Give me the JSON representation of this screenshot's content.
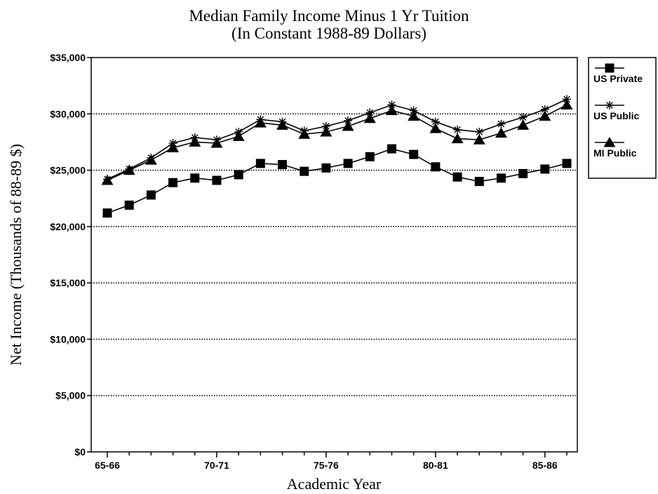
{
  "chart_data": {
    "type": "line",
    "title": "Median Family Income Minus 1 Yr Tuition",
    "subtitle": "(In Constant 1988-89 Dollars)",
    "xlabel": "Academic Year",
    "ylabel": "Net Income (Thousands of 88-89 $)",
    "ylim": [
      0,
      35000
    ],
    "y_ticks": [
      0,
      5000,
      10000,
      15000,
      20000,
      25000,
      30000,
      35000
    ],
    "y_tick_labels": [
      "$0",
      "$5,000",
      "$10,000",
      "$15,000",
      "$20,000",
      "$25,000",
      "$30,000",
      "$35,000"
    ],
    "x": [
      "65-66",
      "66-67",
      "67-68",
      "68-69",
      "69-70",
      "70-71",
      "71-72",
      "72-73",
      "73-74",
      "74-75",
      "75-76",
      "76-77",
      "77-78",
      "78-79",
      "79-80",
      "80-81",
      "81-82",
      "82-83",
      "83-84",
      "84-85",
      "85-86",
      "86-87"
    ],
    "x_tick_labels": [
      "65-66",
      "70-71",
      "75-76",
      "80-81",
      "85-86"
    ],
    "grid": "horizontal dotted",
    "legend_position": "right",
    "series": [
      {
        "name": "US Private",
        "marker": "square",
        "values": [
          21200,
          21900,
          22800,
          23900,
          24300,
          24100,
          24600,
          25600,
          25500,
          24900,
          25200,
          25600,
          26200,
          26900,
          26400,
          25300,
          24400,
          24000,
          24300,
          24700,
          25100,
          25600
        ]
      },
      {
        "name": "US Public",
        "marker": "asterisk",
        "values": [
          24200,
          25100,
          26100,
          27400,
          27900,
          27700,
          28400,
          29500,
          29300,
          28500,
          28900,
          29400,
          30100,
          30800,
          30300,
          29300,
          28600,
          28400,
          29100,
          29700,
          30400,
          31300
        ]
      },
      {
        "name": "MI Public",
        "marker": "triangle",
        "values": [
          24100,
          25000,
          25900,
          27000,
          27500,
          27400,
          28000,
          29200,
          29000,
          28200,
          28400,
          28900,
          29600,
          30300,
          29800,
          28700,
          27800,
          27700,
          28300,
          29000,
          29800,
          30800
        ]
      }
    ]
  },
  "colors": {
    "line": "#000000",
    "grid": "#000000",
    "background": "#ffffff"
  }
}
